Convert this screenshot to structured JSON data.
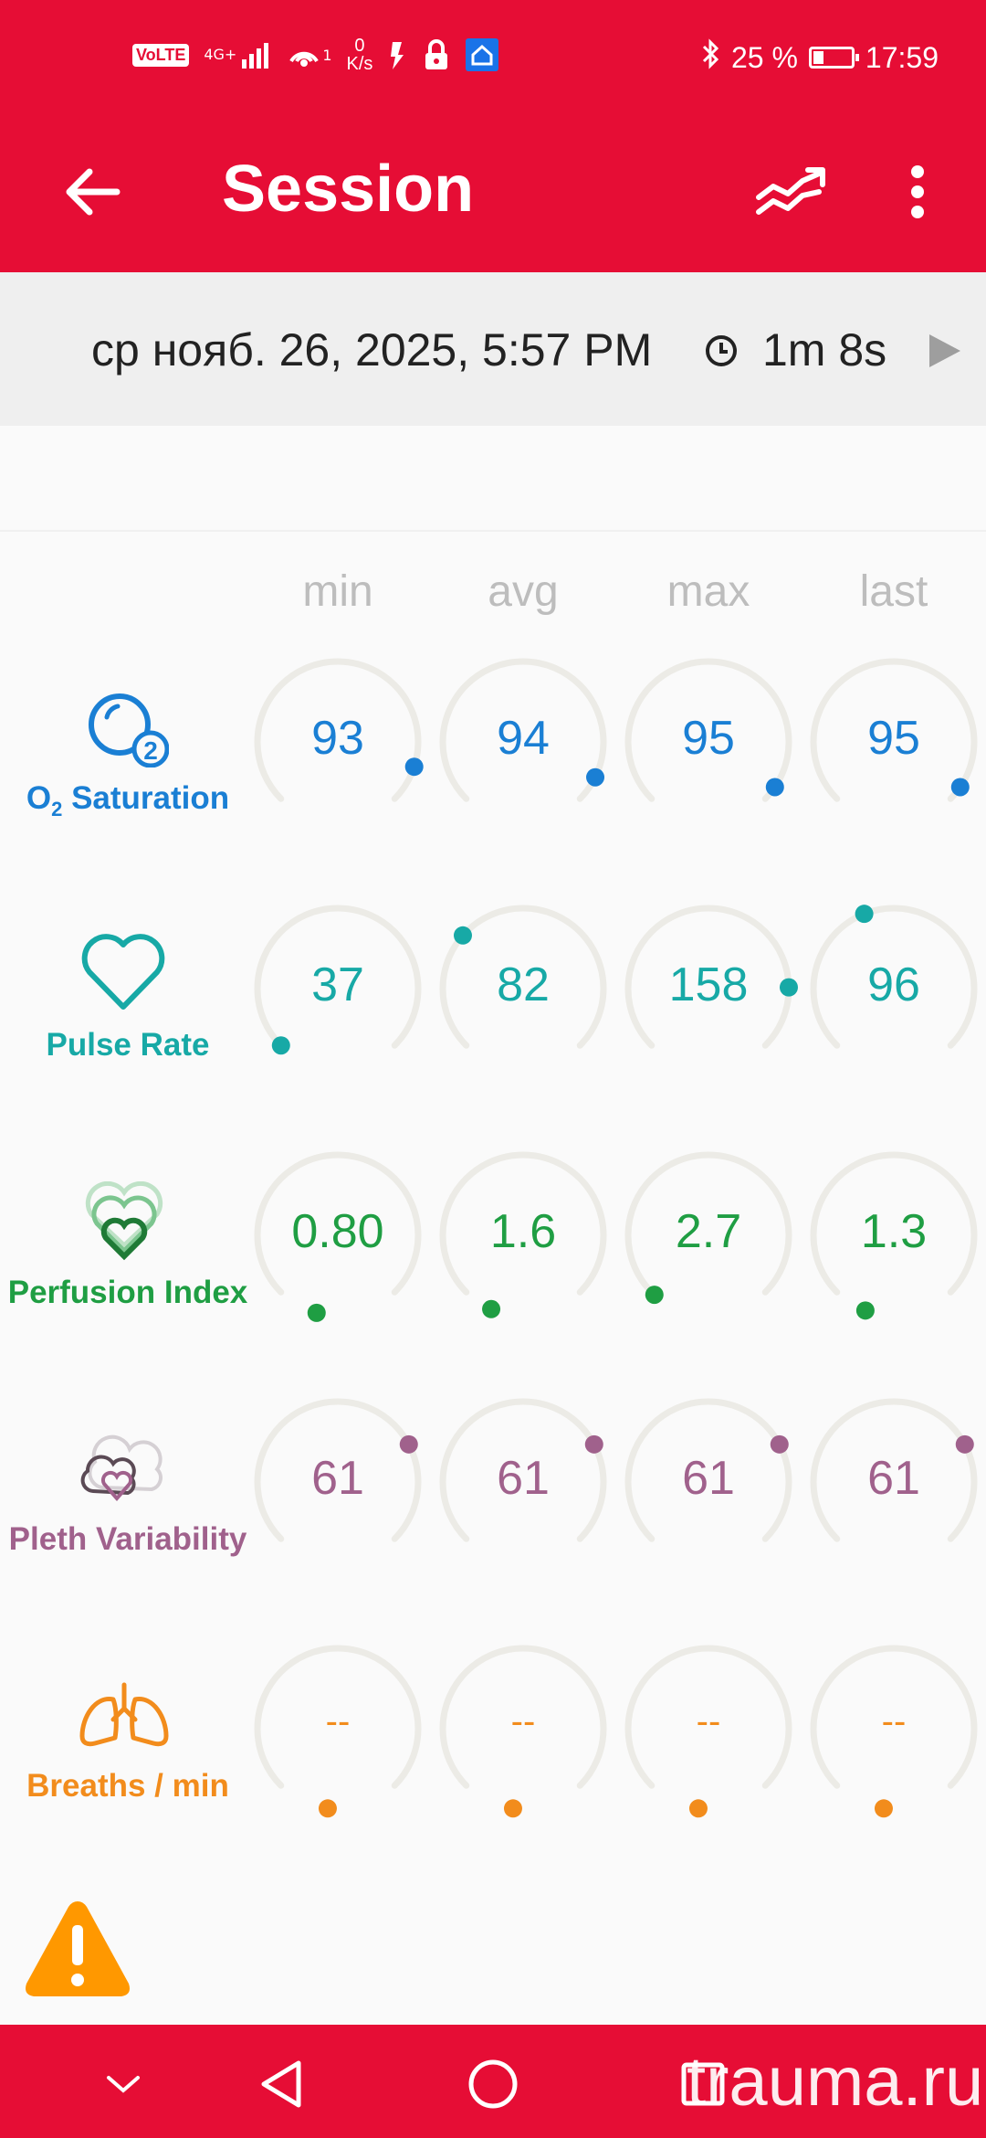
{
  "status_bar": {
    "volte": "VoLTE",
    "network_type": "4G+",
    "hotspot_sup": "1",
    "speed_value": "0",
    "speed_unit": "K/s",
    "battery_percent": "25 %",
    "time": "17:59"
  },
  "app_bar": {
    "title": "Session",
    "back_icon": "arrow-back-icon",
    "trend_icon": "trend-chart-icon",
    "more_icon": "more-vert-icon"
  },
  "session": {
    "date": "ср нояб. 26, 2025, 5:57 PM",
    "duration": "1m 8s"
  },
  "columns": [
    "min",
    "avg",
    "max",
    "last"
  ],
  "metrics": [
    {
      "label_main": "O",
      "label_sub": "2",
      "label_rest": " Saturation",
      "icon": "o2-saturation-icon",
      "color": "#1a7fd4",
      "values": [
        "93",
        "94",
        "95",
        "95"
      ],
      "levels": [
        0.9,
        0.93,
        0.96,
        0.96
      ]
    },
    {
      "label": "Pulse Rate",
      "icon": "heart-outline-icon",
      "color": "#17a9a6",
      "values": [
        "37",
        "82",
        "158",
        "96"
      ],
      "levels": [
        0.0,
        0.32,
        0.83,
        0.42
      ]
    },
    {
      "label": "Perfusion Index",
      "icon": "perfusion-hearts-icon",
      "color": "#1f9e43",
      "values": [
        "0.80",
        "1.6",
        "2.7",
        "1.3"
      ],
      "levels": [
        -0.11,
        -0.08,
        -0.01,
        -0.09
      ]
    },
    {
      "label": "Pleth Variability",
      "icon": "pleth-variability-icon",
      "color": "#a0618c",
      "values": [
        "61",
        "61",
        "61",
        "61"
      ],
      "levels": [
        0.73,
        0.73,
        0.73,
        0.73
      ]
    },
    {
      "label": "Breaths / min",
      "icon": "lungs-icon",
      "color": "#f28c1c",
      "values": [
        "--",
        "--",
        "--",
        "--"
      ],
      "levels": [
        -0.14,
        -0.14,
        -0.14,
        -0.14
      ]
    }
  ],
  "warning_icon": "warning-triangle-icon",
  "watermark": "trauma.ru",
  "nav": {
    "collapse_icon": "chevron-down-icon",
    "back_icon": "nav-back-triangle-icon",
    "home_icon": "nav-home-circle-icon",
    "recents_icon": "nav-recents-square-icon"
  }
}
